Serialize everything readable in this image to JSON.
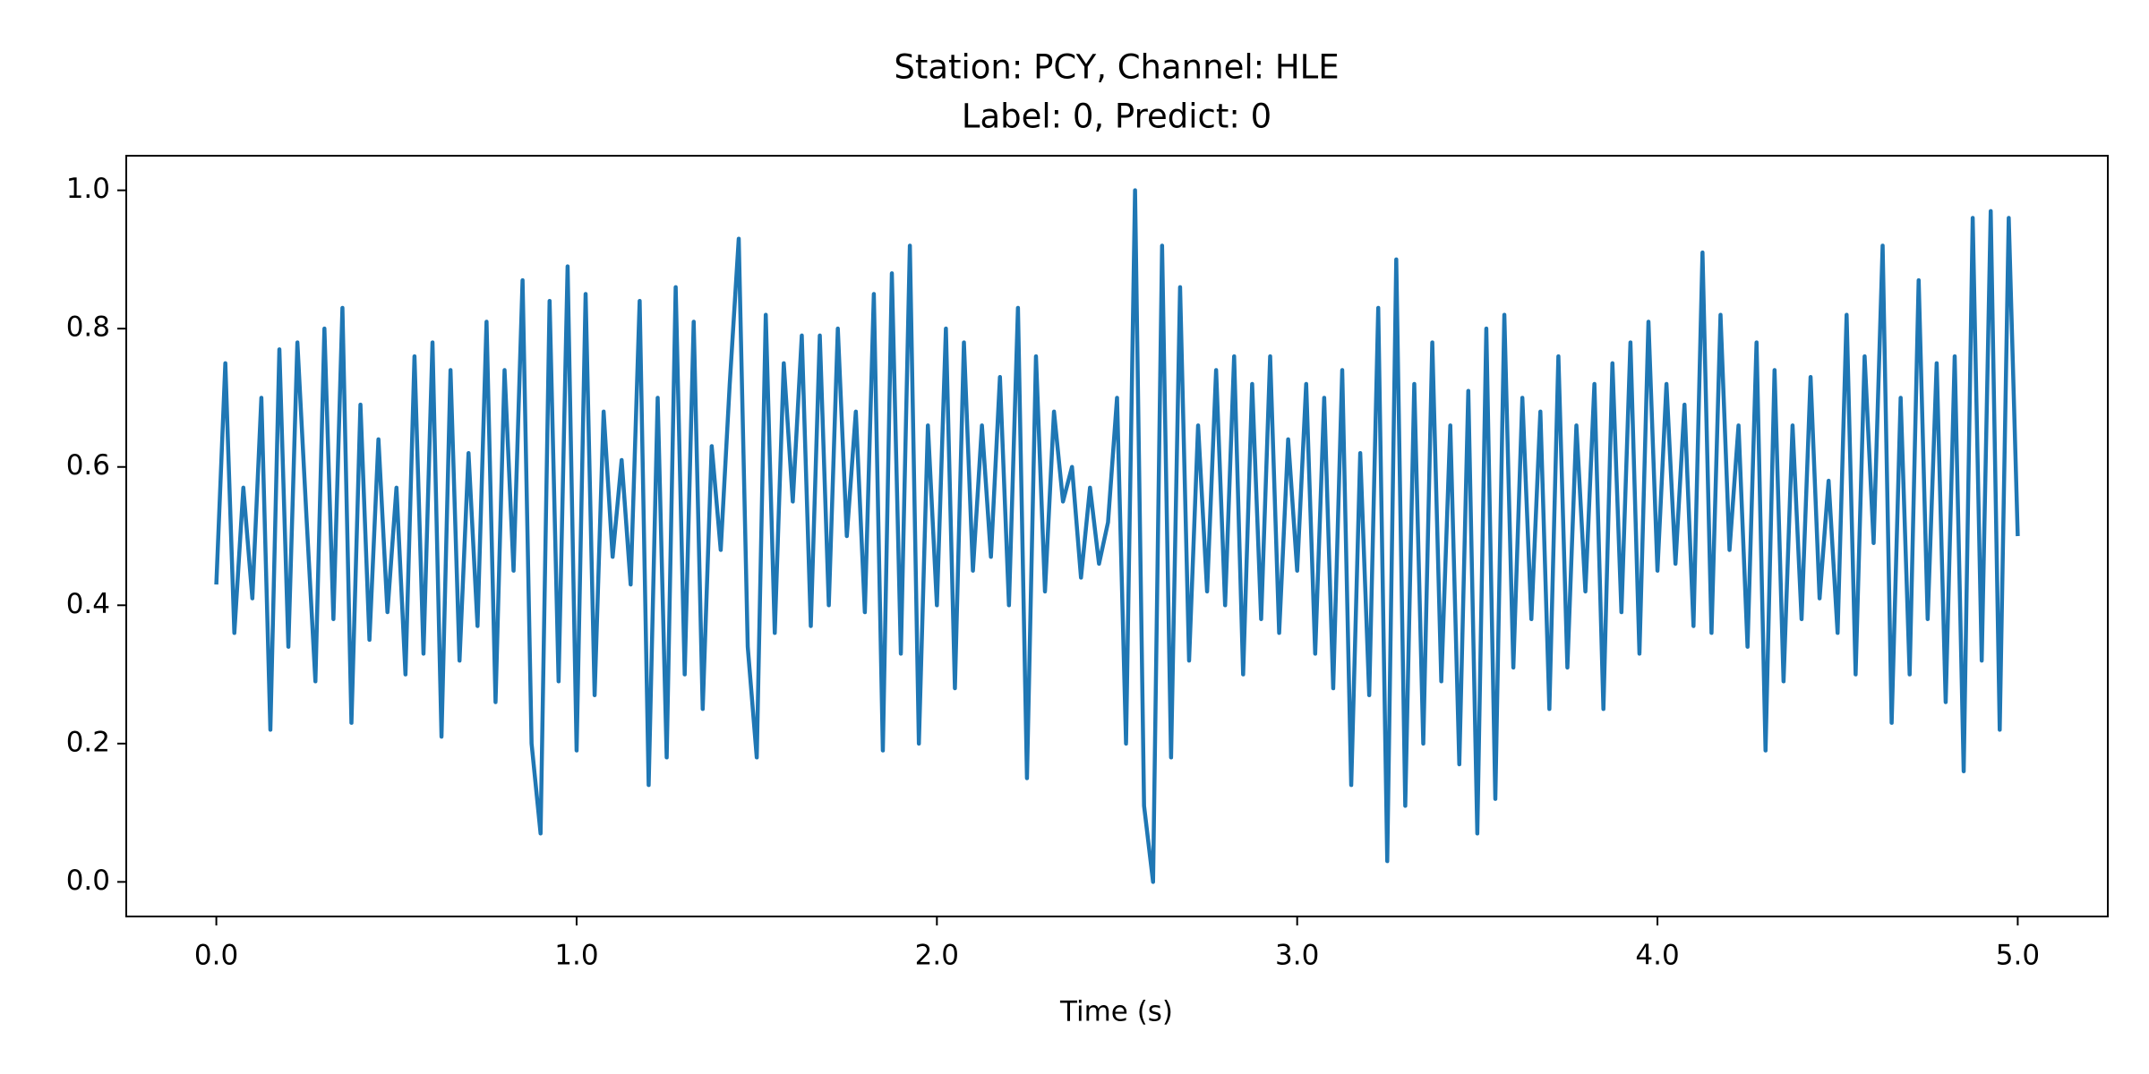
{
  "chart_data": {
    "type": "line",
    "title": "Station: PCY, Channel: HLE",
    "subtitle": "Label: 0, Predict: 0",
    "xlabel": "Time (s)",
    "xlim": [
      -0.25,
      5.25
    ],
    "ylim": [
      -0.05,
      1.05
    ],
    "xticks": [
      {
        "value": 0,
        "label": "0.0"
      },
      {
        "value": 1,
        "label": "1.0"
      },
      {
        "value": 2,
        "label": "2.0"
      },
      {
        "value": 3,
        "label": "3.0"
      },
      {
        "value": 4,
        "label": "4.0"
      },
      {
        "value": 5,
        "label": "5.0"
      }
    ],
    "yticks": [
      {
        "value": 0,
        "label": "0.0"
      },
      {
        "value": 0.2,
        "label": "0.2"
      },
      {
        "value": 0.4,
        "label": "0.4"
      },
      {
        "value": 0.6,
        "label": "0.6"
      },
      {
        "value": 0.8,
        "label": "0.8"
      },
      {
        "value": 1,
        "label": "1.0"
      }
    ],
    "grid": false,
    "x": [
      0,
      0.025,
      0.05,
      0.075,
      0.1,
      0.125,
      0.15,
      0.175,
      0.2,
      0.225,
      0.25,
      0.275,
      0.3,
      0.325,
      0.35,
      0.375,
      0.4,
      0.425,
      0.45,
      0.475,
      0.5,
      0.525,
      0.55,
      0.575,
      0.6,
      0.625,
      0.65,
      0.675,
      0.7,
      0.725,
      0.75,
      0.775,
      0.8,
      0.825,
      0.85,
      0.875,
      0.9,
      0.925,
      0.95,
      0.975,
      1,
      1.025,
      1.05,
      1.075,
      1.1,
      1.125,
      1.15,
      1.175,
      1.2,
      1.225,
      1.25,
      1.275,
      1.3,
      1.325,
      1.35,
      1.375,
      1.4,
      1.425,
      1.45,
      1.475,
      1.5,
      1.525,
      1.55,
      1.575,
      1.6,
      1.625,
      1.65,
      1.675,
      1.7,
      1.725,
      1.75,
      1.775,
      1.8,
      1.825,
      1.85,
      1.875,
      1.9,
      1.925,
      1.95,
      1.975,
      2,
      2.025,
      2.05,
      2.075,
      2.1,
      2.125,
      2.15,
      2.175,
      2.2,
      2.225,
      2.25,
      2.275,
      2.3,
      2.325,
      2.35,
      2.375,
      2.4,
      2.425,
      2.45,
      2.475,
      2.5,
      2.525,
      2.55,
      2.575,
      2.6,
      2.625,
      2.65,
      2.675,
      2.7,
      2.725,
      2.75,
      2.775,
      2.8,
      2.825,
      2.85,
      2.875,
      2.9,
      2.925,
      2.95,
      2.975,
      3,
      3.025,
      3.05,
      3.075,
      3.1,
      3.125,
      3.15,
      3.175,
      3.2,
      3.225,
      3.25,
      3.275,
      3.3,
      3.325,
      3.35,
      3.375,
      3.4,
      3.425,
      3.45,
      3.475,
      3.5,
      3.525,
      3.55,
      3.575,
      3.6,
      3.625,
      3.65,
      3.675,
      3.7,
      3.725,
      3.75,
      3.775,
      3.8,
      3.825,
      3.85,
      3.875,
      3.9,
      3.925,
      3.95,
      3.975,
      4,
      4.025,
      4.05,
      4.075,
      4.1,
      4.125,
      4.15,
      4.175,
      4.2,
      4.225,
      4.25,
      4.275,
      4.3,
      4.325,
      4.35,
      4.375,
      4.4,
      4.425,
      4.45,
      4.475,
      4.5,
      4.525,
      4.55,
      4.575,
      4.6,
      4.625,
      4.65,
      4.675,
      4.7,
      4.725,
      4.75,
      4.775,
      4.8,
      4.825,
      4.85,
      4.875,
      4.9,
      4.925,
      4.95,
      4.975,
      5
    ],
    "series": [
      {
        "color": "#1f77b4",
        "values": [
          0.43,
          0.75,
          0.36,
          0.57,
          0.41,
          0.7,
          0.22,
          0.77,
          0.34,
          0.78,
          0.53,
          0.29,
          0.8,
          0.38,
          0.83,
          0.23,
          0.69,
          0.35,
          0.64,
          0.39,
          0.57,
          0.3,
          0.76,
          0.33,
          0.78,
          0.21,
          0.74,
          0.32,
          0.62,
          0.37,
          0.81,
          0.26,
          0.74,
          0.45,
          0.87,
          0.2,
          0.07,
          0.84,
          0.29,
          0.89,
          0.19,
          0.85,
          0.27,
          0.68,
          0.47,
          0.61,
          0.43,
          0.84,
          0.14,
          0.7,
          0.18,
          0.86,
          0.3,
          0.81,
          0.25,
          0.63,
          0.48,
          0.72,
          0.93,
          0.34,
          0.18,
          0.82,
          0.36,
          0.75,
          0.55,
          0.79,
          0.37,
          0.79,
          0.4,
          0.8,
          0.5,
          0.68,
          0.39,
          0.85,
          0.19,
          0.88,
          0.33,
          0.92,
          0.2,
          0.66,
          0.4,
          0.8,
          0.28,
          0.78,
          0.45,
          0.66,
          0.47,
          0.73,
          0.4,
          0.83,
          0.15,
          0.76,
          0.42,
          0.68,
          0.55,
          0.6,
          0.44,
          0.57,
          0.46,
          0.52,
          0.7,
          0.2,
          1.0,
          0.11,
          0.0,
          0.92,
          0.18,
          0.86,
          0.32,
          0.66,
          0.42,
          0.74,
          0.4,
          0.76,
          0.3,
          0.72,
          0.38,
          0.76,
          0.36,
          0.64,
          0.45,
          0.72,
          0.33,
          0.7,
          0.28,
          0.74,
          0.14,
          0.62,
          0.27,
          0.83,
          0.03,
          0.9,
          0.11,
          0.72,
          0.2,
          0.78,
          0.29,
          0.66,
          0.17,
          0.71,
          0.07,
          0.8,
          0.12,
          0.82,
          0.31,
          0.7,
          0.38,
          0.68,
          0.25,
          0.76,
          0.31,
          0.66,
          0.42,
          0.72,
          0.25,
          0.75,
          0.39,
          0.78,
          0.33,
          0.81,
          0.45,
          0.72,
          0.46,
          0.69,
          0.37,
          0.91,
          0.36,
          0.82,
          0.48,
          0.66,
          0.34,
          0.78,
          0.19,
          0.74,
          0.29,
          0.66,
          0.38,
          0.73,
          0.41,
          0.58,
          0.36,
          0.82,
          0.3,
          0.76,
          0.49,
          0.92,
          0.23,
          0.7,
          0.3,
          0.87,
          0.38,
          0.75,
          0.26,
          0.76,
          0.16,
          0.96,
          0.32,
          0.97,
          0.22,
          0.96,
          0.5
        ]
      }
    ]
  }
}
